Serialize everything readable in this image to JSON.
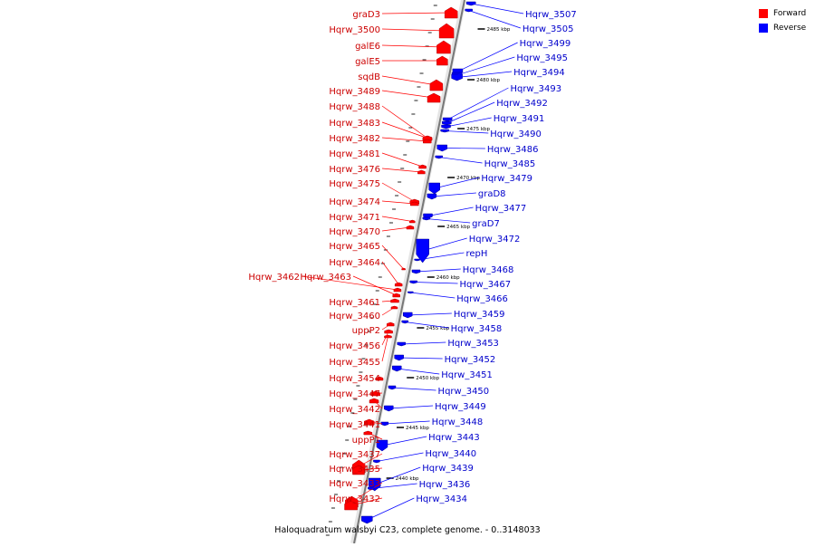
{
  "caption": "Haloquadratum walsbyi C23, complete genome. - 0..3148033",
  "legend": [
    {
      "label": "Forward",
      "color": "#ff0000"
    },
    {
      "label": "Reverse",
      "color": "#0000ff"
    }
  ],
  "colors": {
    "forward": "#ff0000",
    "reverse": "#0000ff",
    "backbone": "#777777"
  },
  "forward_labels": [
    "graD3",
    "Hqrw_3500",
    "galE6",
    "galE5",
    "sqdB",
    "Hqrw_3489",
    "Hqrw_3488",
    "Hqrw_3483",
    "Hqrw_3482",
    "Hqrw_3481",
    "Hqrw_3476",
    "Hqrw_3475",
    "Hqrw_3474",
    "Hqrw_3471",
    "Hqrw_3470",
    "Hqrw_3465",
    "Hqrw_3464",
    "Hqrw_3462",
    "Hqrw_3463",
    "Hqrw_3461",
    "Hqrw_3460",
    "uppP2",
    "Hqrw_3456",
    "Hqrw_3455",
    "Hqrw_3454",
    "Hqrw_3447",
    "Hqrw_3442",
    "Hqrw_3441",
    "uppP1",
    "Hqrw_3437",
    "Hqrw_3435",
    "Hqrw_3433",
    "Hqrw_3432"
  ],
  "reverse_labels": [
    "Hqrw_3507",
    "Hqrw_3505",
    "Hqrw_3499",
    "Hqrw_3495",
    "Hqrw_3494",
    "Hqrw_3493",
    "Hqrw_3492",
    "Hqrw_3491",
    "Hqrw_3490",
    "Hqrw_3486",
    "Hqrw_3485",
    "Hqrw_3479",
    "graD8",
    "Hqrw_3477",
    "graD7",
    "Hqrw_3472",
    "repH",
    "Hqrw_3468",
    "Hqrw_3467",
    "Hqrw_3466",
    "Hqrw_3459",
    "Hqrw_3458",
    "Hqrw_3453",
    "Hqrw_3452",
    "Hqrw_3451",
    "Hqrw_3450",
    "Hqrw_3449",
    "Hqrw_3448",
    "Hqrw_3443",
    "Hqrw_3440",
    "Hqrw_3439",
    "Hqrw_3436",
    "Hqrw_3434"
  ],
  "scale_ticks": [
    "2485 kbp",
    "2480 kbp",
    "2475 kbp",
    "2470 kbp",
    "2465 kbp",
    "2460 kbp",
    "2455 kbp",
    "2450 kbp",
    "2445 kbp",
    "2440 kbp"
  ]
}
